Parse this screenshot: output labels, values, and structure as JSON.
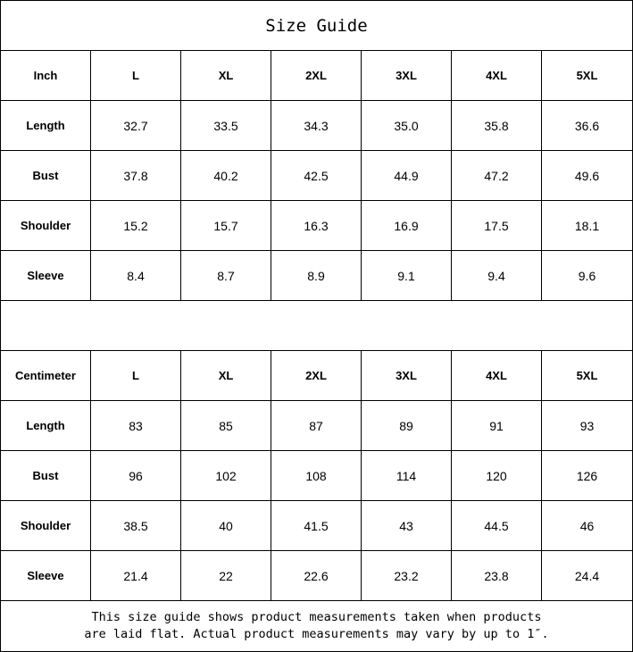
{
  "title": "Size Guide",
  "sizes": [
    "L",
    "XL",
    "2XL",
    "3XL",
    "4XL",
    "5XL"
  ],
  "tables": [
    {
      "unit": "Inch",
      "rows": [
        {
          "label": "Length",
          "values": [
            "32.7",
            "33.5",
            "34.3",
            "35.0",
            "35.8",
            "36.6"
          ]
        },
        {
          "label": "Bust",
          "values": [
            "37.8",
            "40.2",
            "42.5",
            "44.9",
            "47.2",
            "49.6"
          ]
        },
        {
          "label": "Shoulder",
          "values": [
            "15.2",
            "15.7",
            "16.3",
            "16.9",
            "17.5",
            "18.1"
          ]
        },
        {
          "label": "Sleeve",
          "values": [
            "8.4",
            "8.7",
            "8.9",
            "9.1",
            "9.4",
            "9.6"
          ]
        }
      ]
    },
    {
      "unit": "Centimeter",
      "rows": [
        {
          "label": "Length",
          "values": [
            "83",
            "85",
            "87",
            "89",
            "91",
            "93"
          ]
        },
        {
          "label": "Bust",
          "values": [
            "96",
            "102",
            "108",
            "114",
            "120",
            "126"
          ]
        },
        {
          "label": "Shoulder",
          "values": [
            "38.5",
            "40",
            "41.5",
            "43",
            "44.5",
            "46"
          ]
        },
        {
          "label": "Sleeve",
          "values": [
            "21.4",
            "22",
            "22.6",
            "23.2",
            "23.8",
            "24.4"
          ]
        }
      ]
    }
  ],
  "note_lines": [
    "This size guide shows product measurements taken when products",
    "are laid flat. Actual product measurements may vary by up to 1″."
  ]
}
